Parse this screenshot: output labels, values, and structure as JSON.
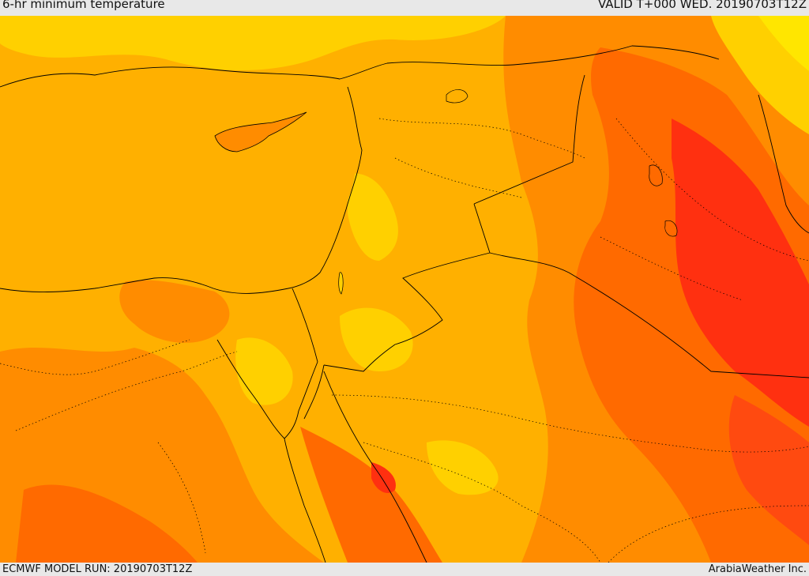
{
  "header": {
    "title": "6-hr minimum temperature",
    "valid": "VALID T+000 WED. 20190703T12Z"
  },
  "footer": {
    "model_run": "ECMWF MODEL RUN: 20190703T12Z",
    "provider": "ArabiaWeather Inc."
  },
  "map": {
    "variable": "6-hr minimum temperature",
    "palette": {
      "coolest": "#ffe600",
      "cool": "#ffd000",
      "mild": "#ffb000",
      "warm": "#ff8c00",
      "hot": "#ff6a00",
      "hotter": "#ff4a10",
      "hottest": "#ff3010"
    },
    "borders_color": "#000000"
  }
}
